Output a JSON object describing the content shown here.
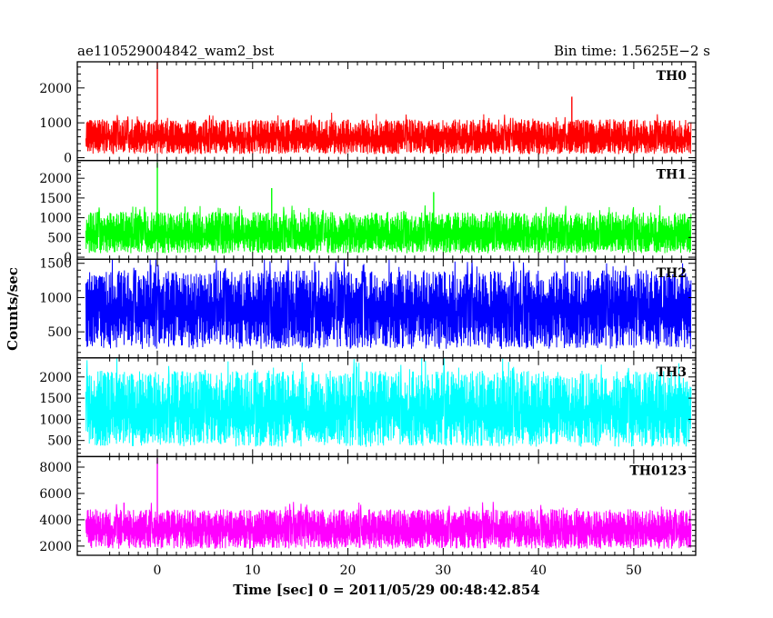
{
  "header": {
    "title": "ae110529004842_wam2_bst",
    "bin_time": "Bin time: 1.5625E−2 s"
  },
  "chart_data": {
    "type": "line",
    "x_label": "Time [sec] 0 = 2011/05/29 00:48:42.854",
    "y_label": "Counts/sec",
    "xlim": [
      -8.4,
      56.5
    ],
    "x_ticks": [
      0,
      10,
      20,
      30,
      40,
      50
    ],
    "x_tick_labels": [
      "0",
      "10",
      "20",
      "30",
      "40",
      "50"
    ],
    "data_x_range": [
      -7.5,
      56.0
    ],
    "grid": false,
    "panels": [
      {
        "name": "TH0",
        "color": "#ff0000",
        "ylim": [
          -80,
          2750
        ],
        "y_ticks": [
          0,
          1000,
          2000
        ],
        "y_tick_labels": [
          "0",
          "1000",
          "2000"
        ],
        "baseline": 550,
        "typical_min": 100,
        "typical_max": 1100,
        "spikes": [
          {
            "x": 0.0,
            "y": 2720
          },
          {
            "x": 43.5,
            "y": 1750
          }
        ]
      },
      {
        "name": "TH1",
        "color": "#00ff00",
        "ylim": [
          -50,
          2450
        ],
        "y_ticks": [
          0,
          500,
          1000,
          1500,
          2000
        ],
        "y_tick_labels": [
          "0",
          "500",
          "1000",
          "1500",
          "2000"
        ],
        "baseline": 550,
        "typical_min": 100,
        "typical_max": 1150,
        "spikes": [
          {
            "x": 0.0,
            "y": 2400
          },
          {
            "x": 12.0,
            "y": 1750
          },
          {
            "x": 29.0,
            "y": 1650
          }
        ]
      },
      {
        "name": "TH2",
        "color": "#0000ff",
        "ylim": [
          120,
          1560
        ],
        "y_ticks": [
          500,
          1000,
          1500
        ],
        "y_tick_labels": [
          "500",
          "1000",
          "1500"
        ],
        "baseline": 800,
        "typical_min": 250,
        "typical_max": 1400,
        "spikes": []
      },
      {
        "name": "TH3",
        "color": "#00ffff",
        "ylim": [
          120,
          2450
        ],
        "y_ticks": [
          500,
          1000,
          1500,
          2000
        ],
        "y_tick_labels": [
          "500",
          "1000",
          "1500",
          "2000"
        ],
        "baseline": 1150,
        "typical_min": 350,
        "typical_max": 2150,
        "spikes": []
      },
      {
        "name": "TH0123",
        "color": "#ff00ff",
        "ylim": [
          1300,
          8800
        ],
        "y_ticks": [
          2000,
          4000,
          6000,
          8000
        ],
        "y_tick_labels": [
          "2000",
          "4000",
          "6000",
          "8000"
        ],
        "baseline": 3200,
        "typical_min": 1800,
        "typical_max": 4800,
        "spikes": [
          {
            "x": 0.0,
            "y": 8700
          },
          {
            "x": -3.5,
            "y": 5300
          }
        ]
      }
    ]
  }
}
